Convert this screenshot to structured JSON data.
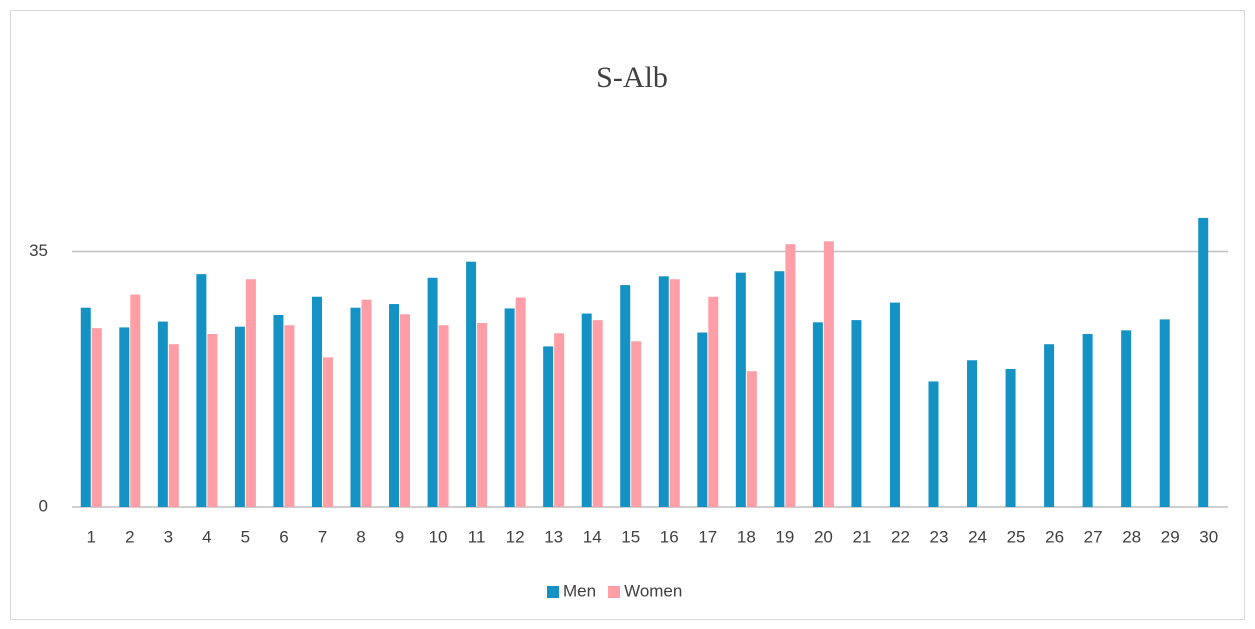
{
  "chart_data": {
    "type": "bar",
    "title": "S-Alb",
    "categories": [
      "1",
      "2",
      "3",
      "4",
      "5",
      "6",
      "7",
      "8",
      "9",
      "10",
      "11",
      "12",
      "13",
      "14",
      "15",
      "16",
      "17",
      "18",
      "19",
      "20",
      "21",
      "22",
      "23",
      "24",
      "25",
      "26",
      "27",
      "28",
      "29",
      "30"
    ],
    "series": [
      {
        "name": "Men",
        "color": "#1592c4",
        "values": [
          27.3,
          24.6,
          25.4,
          31.9,
          24.7,
          26.3,
          28.8,
          27.3,
          27.8,
          31.4,
          33.6,
          27.2,
          22.0,
          26.5,
          30.4,
          31.6,
          23.9,
          32.1,
          32.3,
          25.3,
          25.6,
          28.0,
          17.2,
          20.1,
          18.9,
          22.3,
          23.7,
          24.2,
          25.7,
          39.6
        ]
      },
      {
        "name": "Women",
        "color": "#ff9ea6",
        "values": [
          24.5,
          29.1,
          22.3,
          23.7,
          31.2,
          24.9,
          20.5,
          28.4,
          26.4,
          24.9,
          25.2,
          28.7,
          23.8,
          25.6,
          22.7,
          31.2,
          28.8,
          18.6,
          36.0,
          36.4,
          null,
          null,
          null,
          null,
          null,
          null,
          null,
          null,
          null,
          null
        ]
      }
    ],
    "ylim": [
      0,
      40
    ],
    "yticks": [
      0,
      35
    ],
    "grid": true,
    "legend": "bottom"
  }
}
